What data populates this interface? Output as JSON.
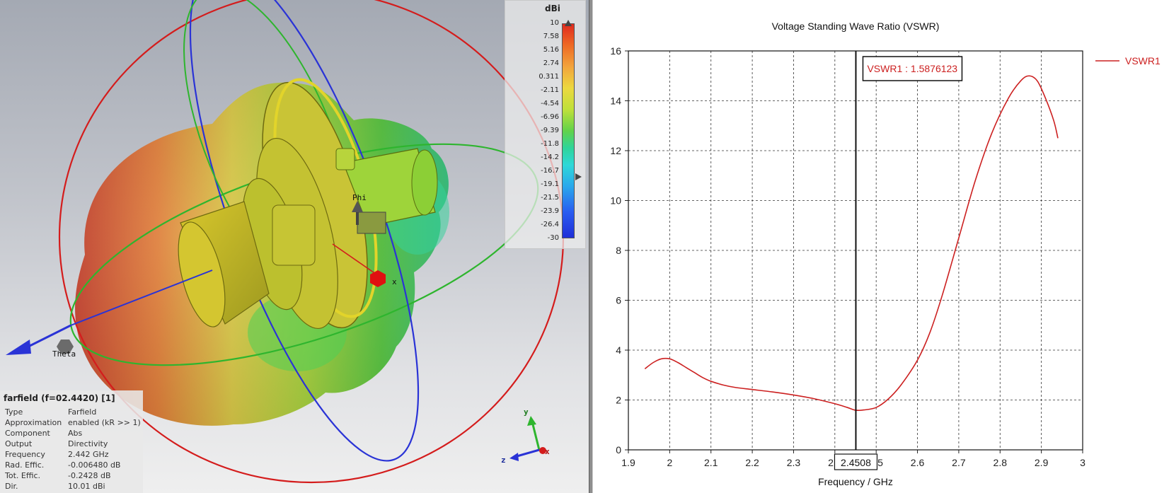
{
  "viewer": {
    "axis_labels": {
      "phi": "Phi",
      "theta": "Theta",
      "x": "x"
    },
    "triad": {
      "x": "x",
      "y": "y",
      "z": "z"
    },
    "colorbar": {
      "unit": "dBi",
      "ticks": [
        "10",
        "7.58",
        "5.16",
        "2.74",
        "0.311",
        "-2.11",
        "-4.54",
        "-6.96",
        "-9.39",
        "-11.8",
        "-14.2",
        "-16.7",
        "-19.1",
        "-21.5",
        "-23.9",
        "-26.4",
        "-30"
      ]
    },
    "info": {
      "title": "farfield (f=02.4420) [1]",
      "rows": [
        {
          "key": "Type",
          "value": "Farfield"
        },
        {
          "key": "Approximation",
          "value": "enabled (kR >> 1)"
        },
        {
          "key": "Component",
          "value": "Abs"
        },
        {
          "key": "Output",
          "value": "Directivity"
        },
        {
          "key": "Frequency",
          "value": "2.442 GHz"
        },
        {
          "key": "Rad. Effic.",
          "value": "-0.006480 dB"
        },
        {
          "key": "Tot. Effic.",
          "value": "-0.2428 dB"
        },
        {
          "key": "Dir.",
          "value": "10.01 dBi"
        }
      ]
    }
  },
  "chart_data": {
    "type": "line",
    "title": "Voltage Standing Wave Ratio (VSWR)",
    "xlabel": "Frequency / GHz",
    "ylabel": "",
    "xlim": [
      1.9,
      3
    ],
    "ylim": [
      0,
      16
    ],
    "xticks": [
      "1.9",
      "2",
      "2.1",
      "2.2",
      "2.3",
      "2.4",
      "2.5",
      "2.6",
      "2.7",
      "2.8",
      "2.9",
      "3"
    ],
    "yticks": [
      "0",
      "2",
      "4",
      "6",
      "8",
      "10",
      "12",
      "14",
      "16"
    ],
    "grid": true,
    "legend": "top-right",
    "marker": {
      "x": 2.4508,
      "x_label": "2.4508",
      "annotation": "VSWR1 : 1.5876123"
    },
    "series": [
      {
        "name": "VSWR1",
        "color": "#cc2020",
        "x": [
          1.94,
          1.96,
          1.98,
          2.0,
          2.02,
          2.04,
          2.06,
          2.08,
          2.1,
          2.13,
          2.16,
          2.2,
          2.25,
          2.3,
          2.35,
          2.4,
          2.43,
          2.45,
          2.47,
          2.5,
          2.53,
          2.56,
          2.6,
          2.63,
          2.66,
          2.7,
          2.74,
          2.78,
          2.82,
          2.85,
          2.87,
          2.89,
          2.91,
          2.93,
          2.94
        ],
        "y": [
          3.25,
          3.5,
          3.65,
          3.65,
          3.5,
          3.3,
          3.1,
          2.9,
          2.75,
          2.6,
          2.5,
          2.42,
          2.32,
          2.2,
          2.05,
          1.85,
          1.7,
          1.59,
          1.6,
          1.7,
          2.05,
          2.6,
          3.6,
          4.7,
          6.2,
          8.5,
          10.8,
          12.7,
          14.1,
          14.8,
          15.0,
          14.8,
          14.1,
          13.2,
          12.5
        ]
      }
    ]
  }
}
